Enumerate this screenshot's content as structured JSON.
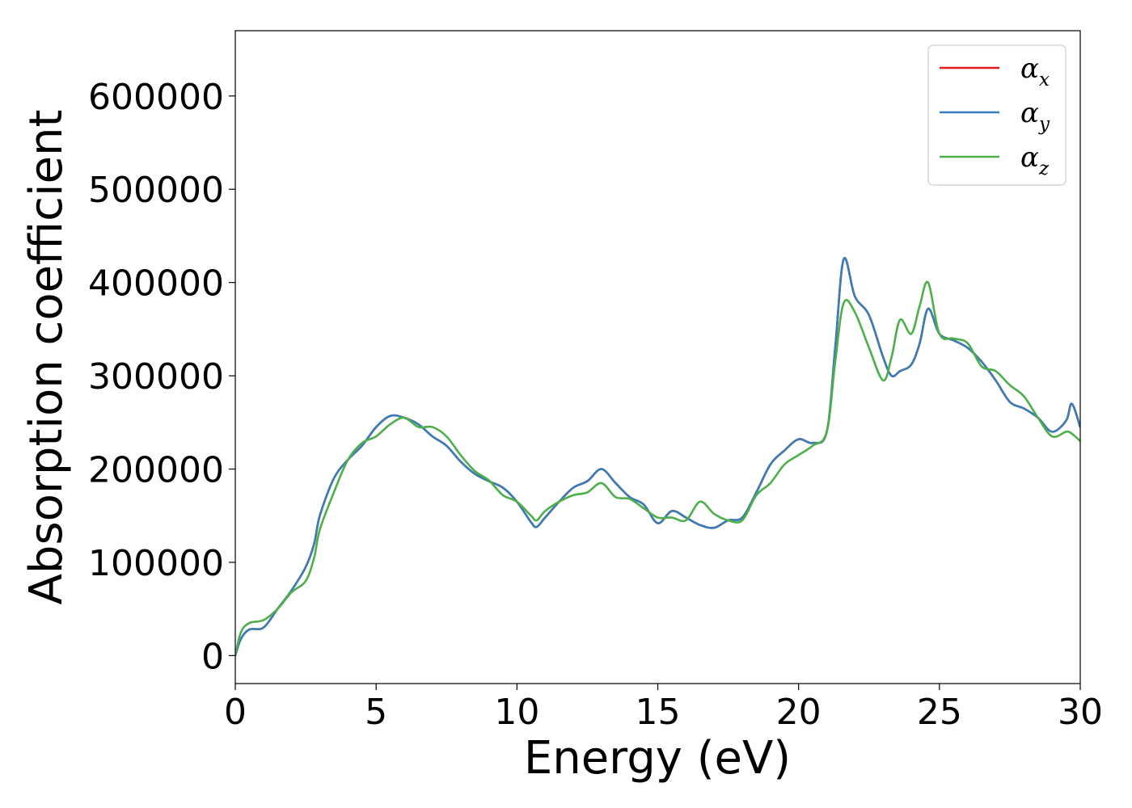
{
  "chart_data": {
    "type": "line",
    "title": "",
    "xlabel": "Energy (eV)",
    "ylabel": "Absorption coefficient",
    "xlim": [
      0,
      30
    ],
    "ylim": [
      -30000,
      670000
    ],
    "xticks": [
      0,
      5,
      10,
      15,
      20,
      25,
      30
    ],
    "xtick_labels": [
      "0",
      "5",
      "10",
      "15",
      "20",
      "25",
      "30"
    ],
    "yticks": [
      0,
      100000,
      200000,
      300000,
      400000,
      500000,
      600000
    ],
    "ytick_labels": [
      "0",
      "100000",
      "200000",
      "300000",
      "400000",
      "500000",
      "600000"
    ],
    "grid": false,
    "legend_position": "top-right",
    "series": [
      {
        "name": "α",
        "subscript": "x",
        "color": "#e41a1c",
        "x": [
          0,
          0.2,
          0.5,
          1.0,
          1.5,
          2.0,
          2.5,
          2.8,
          3.0,
          3.5,
          4.0,
          4.5,
          5.0,
          5.5,
          6.0,
          6.5,
          7.0,
          7.5,
          8.0,
          8.5,
          9.0,
          9.5,
          10.0,
          10.5,
          10.7,
          11.0,
          11.5,
          12.0,
          12.5,
          13.0,
          13.5,
          14.0,
          14.5,
          15.0,
          15.5,
          16.0,
          16.5,
          17.0,
          17.5,
          18.0,
          18.5,
          19.0,
          19.5,
          20.0,
          20.5,
          21.0,
          21.3,
          21.6,
          22.0,
          22.5,
          23.0,
          23.3,
          23.6,
          24.0,
          24.3,
          24.6,
          25.0,
          25.5,
          26.0,
          26.5,
          27.0,
          27.5,
          28.0,
          28.5,
          29.0,
          29.5,
          29.7,
          30.0
        ],
        "y": [
          0,
          18000,
          28000,
          30000,
          50000,
          70000,
          95000,
          120000,
          150000,
          190000,
          210000,
          225000,
          245000,
          257000,
          255000,
          248000,
          235000,
          225000,
          208000,
          195000,
          187000,
          180000,
          165000,
          143000,
          138000,
          148000,
          165000,
          180000,
          187000,
          200000,
          185000,
          170000,
          162000,
          142000,
          155000,
          148000,
          140000,
          137000,
          145000,
          148000,
          175000,
          205000,
          220000,
          232000,
          228000,
          240000,
          330000,
          425000,
          385000,
          365000,
          320000,
          300000,
          305000,
          312000,
          335000,
          372000,
          345000,
          338000,
          330000,
          315000,
          295000,
          272000,
          265000,
          255000,
          240000,
          252000,
          270000,
          245000
        ]
      },
      {
        "name": "α",
        "subscript": "y",
        "color": "#377eb8",
        "x": [
          0,
          0.2,
          0.5,
          1.0,
          1.5,
          2.0,
          2.5,
          2.8,
          3.0,
          3.5,
          4.0,
          4.5,
          5.0,
          5.5,
          6.0,
          6.5,
          7.0,
          7.5,
          8.0,
          8.5,
          9.0,
          9.5,
          10.0,
          10.5,
          10.7,
          11.0,
          11.5,
          12.0,
          12.5,
          13.0,
          13.5,
          14.0,
          14.5,
          15.0,
          15.5,
          16.0,
          16.5,
          17.0,
          17.5,
          18.0,
          18.5,
          19.0,
          19.5,
          20.0,
          20.5,
          21.0,
          21.3,
          21.6,
          22.0,
          22.5,
          23.0,
          23.3,
          23.6,
          24.0,
          24.3,
          24.6,
          25.0,
          25.5,
          26.0,
          26.5,
          27.0,
          27.5,
          28.0,
          28.5,
          29.0,
          29.5,
          29.7,
          30.0
        ],
        "y": [
          0,
          18000,
          28000,
          30000,
          50000,
          70000,
          95000,
          120000,
          150000,
          190000,
          210000,
          225000,
          245000,
          257000,
          255000,
          248000,
          235000,
          225000,
          208000,
          195000,
          187000,
          180000,
          165000,
          143000,
          138000,
          148000,
          165000,
          180000,
          187000,
          200000,
          185000,
          170000,
          162000,
          142000,
          155000,
          148000,
          140000,
          137000,
          145000,
          148000,
          175000,
          205000,
          220000,
          232000,
          228000,
          240000,
          330000,
          425000,
          385000,
          365000,
          320000,
          300000,
          305000,
          312000,
          335000,
          372000,
          345000,
          338000,
          330000,
          315000,
          295000,
          272000,
          265000,
          255000,
          240000,
          252000,
          270000,
          245000
        ]
      },
      {
        "name": "α",
        "subscript": "z",
        "color": "#4daf4a",
        "x": [
          0,
          0.2,
          0.5,
          1.0,
          1.5,
          2.0,
          2.5,
          2.8,
          3.0,
          3.5,
          4.0,
          4.5,
          5.0,
          5.5,
          6.0,
          6.5,
          7.0,
          7.5,
          8.0,
          8.5,
          9.0,
          9.5,
          10.0,
          10.5,
          10.7,
          11.0,
          11.5,
          12.0,
          12.5,
          13.0,
          13.5,
          14.0,
          14.5,
          15.0,
          15.5,
          16.0,
          16.5,
          17.0,
          17.5,
          18.0,
          18.5,
          19.0,
          19.5,
          20.0,
          20.5,
          21.0,
          21.3,
          21.6,
          22.0,
          22.5,
          23.0,
          23.3,
          23.6,
          24.0,
          24.3,
          24.6,
          25.0,
          25.5,
          26.0,
          26.5,
          27.0,
          27.5,
          28.0,
          28.5,
          29.0,
          29.5,
          29.7,
          30.0
        ],
        "y": [
          0,
          25000,
          35000,
          38000,
          50000,
          68000,
          80000,
          105000,
          135000,
          175000,
          210000,
          228000,
          235000,
          248000,
          255000,
          245000,
          245000,
          235000,
          215000,
          198000,
          188000,
          172000,
          165000,
          150000,
          145000,
          155000,
          165000,
          172000,
          175000,
          185000,
          170000,
          168000,
          158000,
          148000,
          148000,
          145000,
          165000,
          152000,
          145000,
          145000,
          172000,
          185000,
          205000,
          215000,
          225000,
          240000,
          315000,
          378000,
          368000,
          330000,
          295000,
          320000,
          360000,
          345000,
          375000,
          400000,
          345000,
          340000,
          335000,
          310000,
          305000,
          290000,
          278000,
          255000,
          235000,
          240000,
          238000,
          230000
        ]
      }
    ]
  }
}
